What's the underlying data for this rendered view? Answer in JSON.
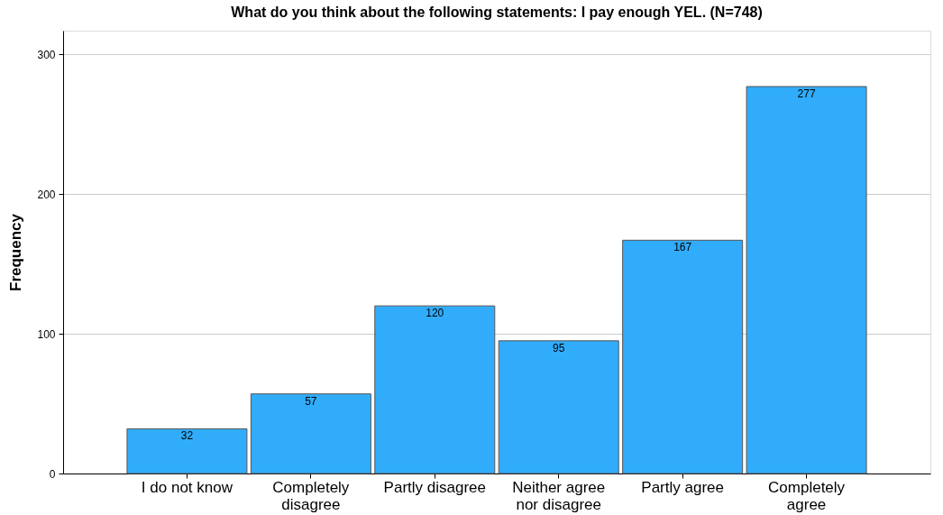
{
  "chart_data": {
    "type": "bar",
    "title": "What do you think about the following statements: I pay enough YEL. (N=748)",
    "ylabel": "Frequency",
    "categories": [
      "I do not know",
      "Completely disagree",
      "Partly disagree",
      "Neither agree nor disagree",
      "Partly agree",
      "Completely agree"
    ],
    "values": [
      32,
      57,
      120,
      95,
      167,
      277
    ],
    "color": "#31acfb",
    "ylim": [
      0,
      317
    ],
    "yticks": [
      0,
      100,
      200,
      300
    ],
    "grid": "y",
    "data_labels": true
  }
}
